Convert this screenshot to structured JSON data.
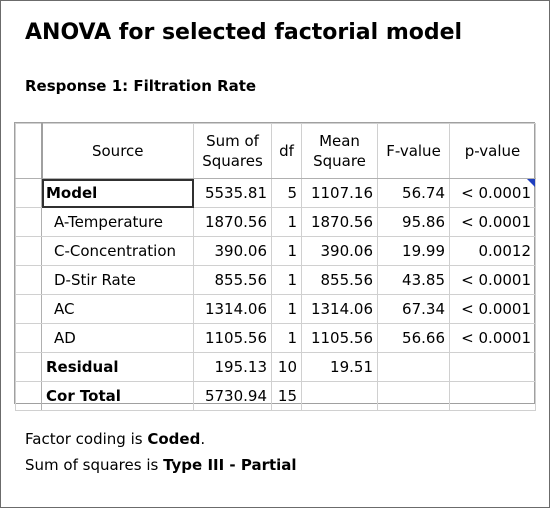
{
  "title": "ANOVA for selected factorial model",
  "subtitle": "Response 1: Filtration Rate",
  "table": {
    "headers": {
      "source": "Source",
      "ss_line1": "Sum of",
      "ss_line2": "Squares",
      "df": "df",
      "ms_line1": "Mean",
      "ms_line2": "Square",
      "f": "F-value",
      "p": "p-value"
    },
    "rows": [
      {
        "source": "Model",
        "ss": "5535.81",
        "df": "5",
        "ms": "1107.16",
        "f": "56.74",
        "p": "< 0.0001"
      },
      {
        "source": "A-Temperature",
        "ss": "1870.56",
        "df": "1",
        "ms": "1870.56",
        "f": "95.86",
        "p": "< 0.0001"
      },
      {
        "source": "C-Concentration",
        "ss": "390.06",
        "df": "1",
        "ms": "390.06",
        "f": "19.99",
        "p": "0.0012"
      },
      {
        "source": "D-Stir Rate",
        "ss": "855.56",
        "df": "1",
        "ms": "855.56",
        "f": "43.85",
        "p": "< 0.0001"
      },
      {
        "source": "AC",
        "ss": "1314.06",
        "df": "1",
        "ms": "1314.06",
        "f": "67.34",
        "p": "< 0.0001"
      },
      {
        "source": "AD",
        "ss": "1105.56",
        "df": "1",
        "ms": "1105.56",
        "f": "56.66",
        "p": "< 0.0001"
      },
      {
        "source": "Residual",
        "ss": "195.13",
        "df": "10",
        "ms": "19.51",
        "f": "",
        "p": ""
      },
      {
        "source": "Cor Total",
        "ss": "5730.94",
        "df": "15",
        "ms": "",
        "f": "",
        "p": ""
      }
    ]
  },
  "notes": {
    "coding_prefix": "Factor coding is ",
    "coding_value": "Coded",
    "coding_suffix": ".",
    "ss_prefix": "Sum of squares is ",
    "ss_value": "Type III - Partial"
  },
  "colors": {
    "corner_marker": "#1f3fbf"
  }
}
